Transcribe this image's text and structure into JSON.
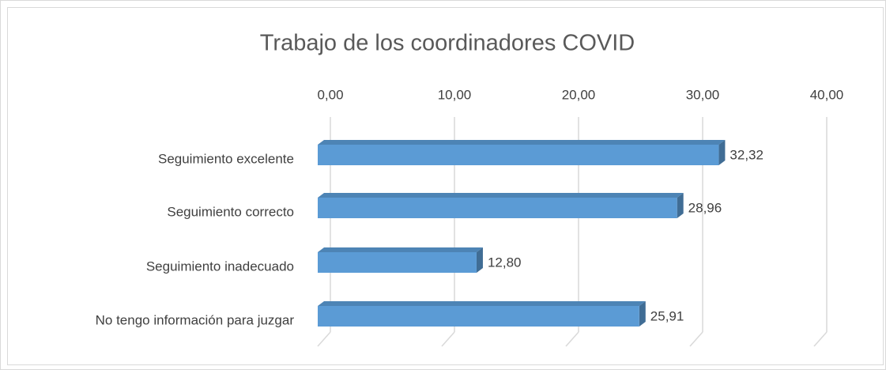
{
  "chart_data": {
    "type": "bar3d_horizontal",
    "title": "Trabajo de los coordinadores COVID",
    "categories": [
      "Seguimiento excelente",
      "Seguimiento correcto",
      "Seguimiento inadecuado",
      "No tengo información para juzgar"
    ],
    "values": [
      32.32,
      28.96,
      12.8,
      25.91
    ],
    "value_labels": [
      "32,32",
      "28,96",
      "12,80",
      "25,91"
    ],
    "color": "#5b9bd5",
    "xlim": [
      0,
      40
    ],
    "xticks": [
      {
        "value": 0,
        "label": "0,00"
      },
      {
        "value": 10,
        "label": "10,00"
      },
      {
        "value": 20,
        "label": "20,00"
      },
      {
        "value": 30,
        "label": "30,00"
      },
      {
        "value": 40,
        "label": "40,00"
      }
    ],
    "grid": true
  }
}
